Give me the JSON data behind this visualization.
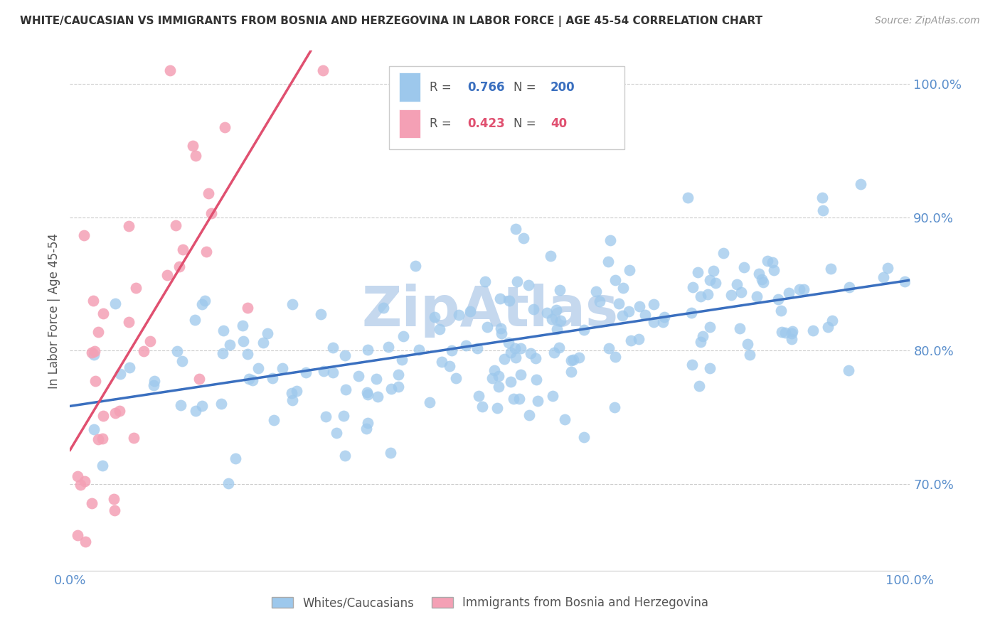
{
  "title": "WHITE/CAUCASIAN VS IMMIGRANTS FROM BOSNIA AND HERZEGOVINA IN LABOR FORCE | AGE 45-54 CORRELATION CHART",
  "source": "Source: ZipAtlas.com",
  "ylabel": "In Labor Force | Age 45-54",
  "y_tick_values": [
    0.7,
    0.8,
    0.9,
    1.0
  ],
  "xlim": [
    0.0,
    1.0
  ],
  "ylim": [
    0.635,
    1.025
  ],
  "legend_label_1": "Whites/Caucasians",
  "legend_label_2": "Immigrants from Bosnia and Herzegovina",
  "R1": 0.766,
  "N1": 200,
  "R2": 0.423,
  "N2": 40,
  "color_blue": "#9DC8EC",
  "color_pink": "#F4A0B5",
  "color_line_blue": "#3A6FBF",
  "color_line_pink": "#E05070",
  "color_axis_ticks": "#5B8FCC",
  "color_watermark": "#C5D8EE",
  "watermark_text": "ZipAtlas",
  "seed": 12
}
